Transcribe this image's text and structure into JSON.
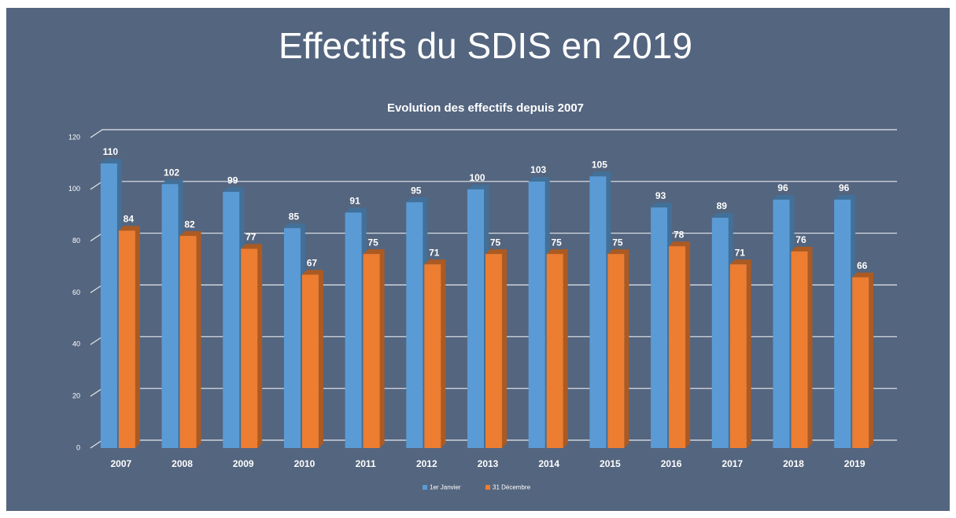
{
  "heading": "Effectifs du SDIS en 2019",
  "chart_data": {
    "type": "bar",
    "title": "Evolution des effectifs depuis 2007",
    "categories": [
      "2007",
      "2008",
      "2009",
      "2010",
      "2011",
      "2012",
      "2013",
      "2014",
      "2015",
      "2016",
      "2017",
      "2018",
      "2019"
    ],
    "series": [
      {
        "name": "1er Janvier",
        "color": "#5b9bd5",
        "values": [
          110,
          102,
          99,
          85,
          91,
          95,
          100,
          103,
          105,
          93,
          89,
          96,
          96
        ]
      },
      {
        "name": "31 Décembre",
        "color": "#ed7d31",
        "values": [
          84,
          82,
          77,
          67,
          75,
          71,
          75,
          75,
          75,
          78,
          71,
          76,
          66
        ]
      }
    ],
    "ylim": [
      0,
      120
    ],
    "yticks": [
      0,
      20,
      40,
      60,
      80,
      100,
      120
    ],
    "grid": true,
    "legend": "bottom"
  }
}
